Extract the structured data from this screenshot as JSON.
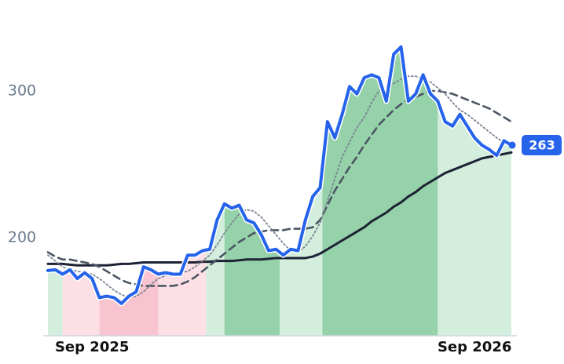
{
  "chart_data": {
    "type": "line",
    "categories": [
      null,
      null,
      null,
      null,
      null,
      null,
      "Sep 2025",
      null,
      null,
      null,
      null,
      null,
      null,
      null,
      null,
      null,
      null,
      null,
      null,
      null,
      null,
      null,
      null,
      null,
      null,
      null,
      null,
      null,
      null,
      null,
      null,
      null,
      null,
      null,
      null,
      null,
      null,
      null,
      null,
      null,
      null,
      null,
      null,
      null,
      null,
      null,
      null,
      null,
      null,
      null,
      null,
      null,
      null,
      null,
      null,
      null,
      null,
      null,
      "Sep 2026",
      null,
      null,
      null,
      null,
      null
    ],
    "ylim": [
      133,
      362
    ],
    "yticks": [
      200,
      300
    ],
    "grid": false,
    "series": [
      {
        "color": "#2563eb",
        "style": "solid",
        "width": 4,
        "values": [
          177.5,
          178,
          175,
          178,
          172,
          176,
          172,
          159,
          160,
          159,
          155,
          160,
          163,
          180,
          178,
          175,
          176,
          175,
          175,
          188,
          188,
          191,
          192,
          212,
          223,
          220,
          222,
          212,
          210,
          202,
          191,
          192,
          188,
          192,
          191,
          212,
          228,
          234,
          279,
          268,
          284,
          303,
          298,
          309,
          311,
          309,
          293,
          325,
          330,
          293,
          298,
          311,
          298,
          293,
          279,
          276,
          284,
          276,
          268,
          263,
          260,
          256,
          266,
          263
        ]
      },
      {
        "color": "#7b8494",
        "style": "dotted",
        "width": 1.8,
        "values": [
          188,
          184,
          180,
          178,
          177,
          176,
          175,
          172,
          168,
          164,
          161,
          159,
          160,
          163,
          168,
          172,
          174,
          176,
          176,
          177,
          180,
          184,
          188,
          195,
          203,
          210,
          216,
          219,
          218,
          214,
          208,
          202,
          196,
          191,
          190,
          194,
          201,
          210,
          225,
          240,
          255,
          265,
          275,
          282,
          292,
          300,
          303,
          305,
          308,
          310,
          310,
          308,
          306,
          302,
          298,
          292,
          287,
          284,
          280,
          276,
          272,
          268,
          265,
          263
        ]
      },
      {
        "color": "#4b5563",
        "style": "dashed",
        "width": 2.6,
        "values": [
          190,
          187,
          185,
          185,
          184,
          183,
          182,
          180,
          177,
          174,
          171,
          169,
          168,
          167,
          167,
          167,
          167,
          167,
          168,
          170,
          173,
          177,
          181,
          185,
          189,
          193,
          197,
          200,
          203,
          204,
          205,
          205,
          205,
          206,
          206,
          206,
          207,
          212,
          222,
          232,
          240,
          248,
          255,
          263,
          270,
          277,
          282,
          287,
          291,
          294,
          296,
          298,
          300,
          300,
          299,
          298,
          296,
          294,
          292,
          290,
          288,
          285,
          282,
          279
        ]
      },
      {
        "color": "#1e2235",
        "style": "solid",
        "width": 3,
        "values": [
          182,
          182,
          182,
          181.5,
          181,
          181,
          181,
          181,
          181,
          181.5,
          182,
          182,
          182.5,
          183,
          183,
          183,
          183,
          183,
          183,
          183,
          183,
          183.5,
          183.5,
          184,
          184,
          184,
          184.5,
          185,
          185,
          185,
          185.5,
          186,
          186,
          186,
          186,
          186,
          187,
          189,
          192,
          195,
          198,
          201,
          204,
          207,
          211,
          214,
          217,
          221,
          224,
          228,
          231,
          235,
          238,
          241,
          244,
          246,
          248,
          250,
          252,
          254,
          255,
          256,
          257,
          258
        ]
      }
    ],
    "bands": [
      {
        "from": 0,
        "to": 2,
        "color": "#d4eedd"
      },
      {
        "from": 2,
        "to": 7,
        "color": "#fde0e6"
      },
      {
        "from": 7,
        "to": 15,
        "color": "#f8c4cf"
      },
      {
        "from": 15,
        "to": 21.5,
        "color": "#fde0e6"
      },
      {
        "from": 21.5,
        "to": 24,
        "color": "#d4eedd"
      },
      {
        "from": 24,
        "to": 31.5,
        "color": "#96d2a9"
      },
      {
        "from": 31.5,
        "to": 37.3,
        "color": "#d4eedd"
      },
      {
        "from": 37.3,
        "to": 53,
        "color": "#96d2a9"
      },
      {
        "from": 53,
        "to": 63,
        "color": "#d4eedd"
      }
    ]
  }
}
